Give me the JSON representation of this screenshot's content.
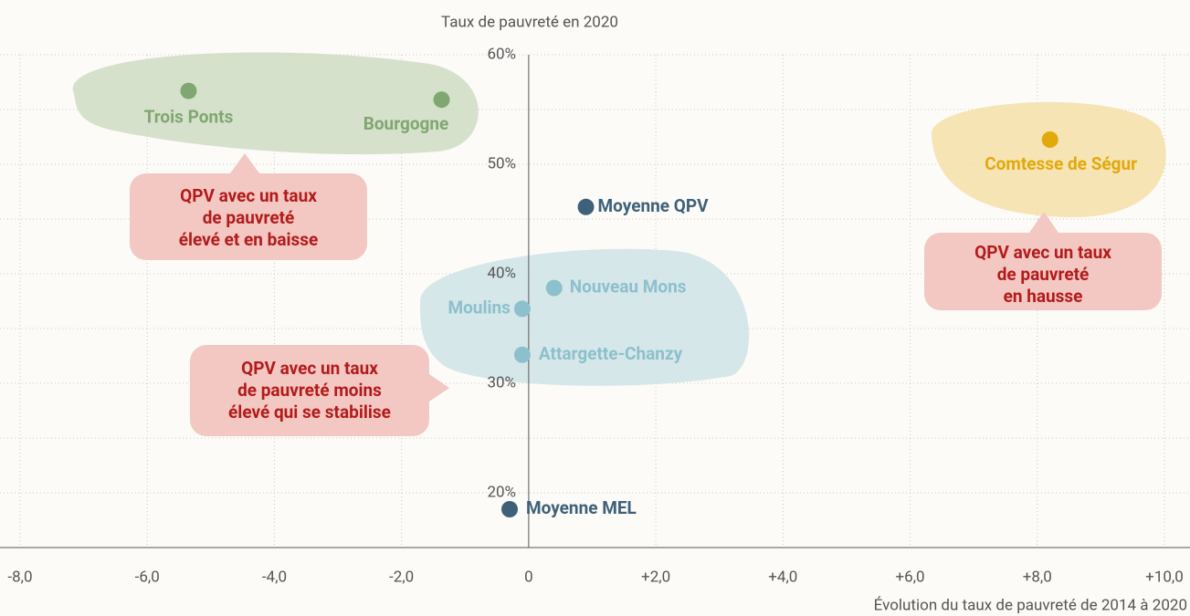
{
  "chart_data": {
    "type": "scatter",
    "y_axis_title": "Taux de pauvreté en 2020",
    "x_axis_title": "Évolution du taux de pauvreté de 2014 à 2020",
    "xlim": [
      -8,
      10
    ],
    "ylim": [
      15,
      60
    ],
    "xticks": [
      {
        "value": -8,
        "label": "-8,0"
      },
      {
        "value": -6,
        "label": "-6,0"
      },
      {
        "value": -4,
        "label": "-4,0"
      },
      {
        "value": -2,
        "label": "-2,0"
      },
      0,
      {
        "value": 2,
        "label": "+2,0"
      },
      {
        "value": 4,
        "label": "+4,0"
      },
      {
        "value": 6,
        "label": "+6,0"
      },
      {
        "value": 8,
        "label": "+8,0"
      },
      {
        "value": 10,
        "label": "+10,0"
      }
    ],
    "yticks": [
      {
        "value": 20,
        "label": "20%"
      },
      {
        "value": 30,
        "label": "30%"
      },
      {
        "value": 40,
        "label": "40%"
      },
      {
        "value": 50,
        "label": "50%"
      },
      {
        "value": 60,
        "label": "60%"
      }
    ],
    "y_minor_ticks": [
      25,
      35,
      45,
      55
    ],
    "grid": true,
    "points": [
      {
        "label": "Trois Ponts",
        "x": -5.35,
        "y": 56.7,
        "color": "#80a771"
      },
      {
        "label": "Bourgogne",
        "x": -1.37,
        "y": 55.9,
        "color": "#80a771"
      },
      {
        "label": "Comtesse de Ségur",
        "x": 8.2,
        "y": 52.25,
        "color": "#e2a90b"
      },
      {
        "label": "Moyenne QPV",
        "x": 0.9,
        "y": 46.1,
        "color": "#3e6179"
      },
      {
        "label": "Nouveau Mons",
        "x": 0.4,
        "y": 38.7,
        "color": "#8cc0cc"
      },
      {
        "label": "Moulins",
        "x": -0.1,
        "y": 36.8,
        "color": "#8cc0cc"
      },
      {
        "label": "Attargette-Chanzy",
        "x": -0.1,
        "y": 32.6,
        "color": "#8cc0cc"
      },
      {
        "label": "Moyenne MEL",
        "x": -0.3,
        "y": 18.5,
        "color": "#3e6179"
      }
    ],
    "annotations": [
      [
        "QPV avec un taux",
        "de pauvreté",
        "élevé et en baisse"
      ],
      [
        "QPV avec un taux",
        "de pauvreté moins",
        "élevé qui se stabilise"
      ],
      [
        "QPV avec un taux",
        "de pauvreté",
        "en hausse"
      ]
    ]
  }
}
